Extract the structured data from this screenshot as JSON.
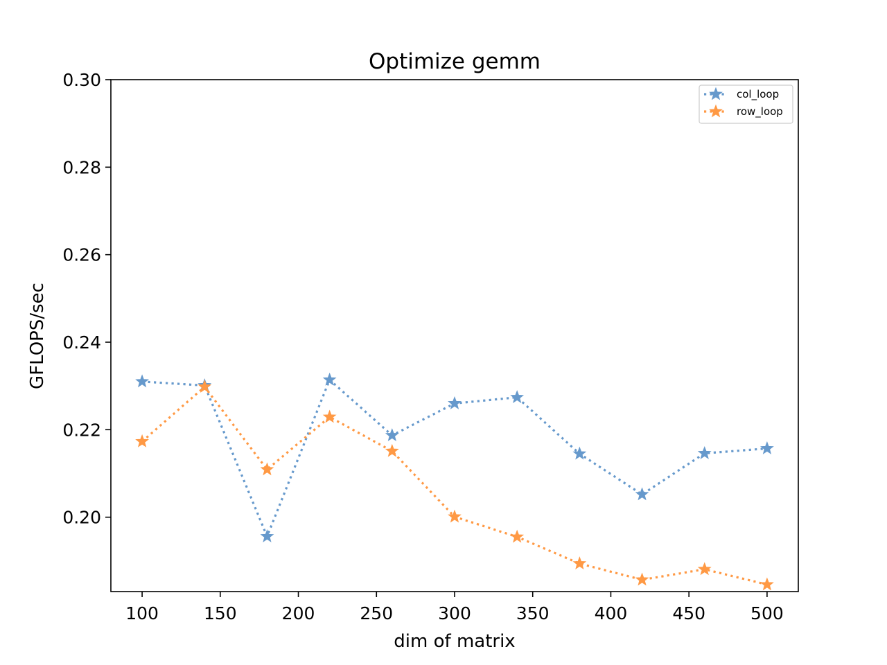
{
  "chart_data": {
    "type": "line",
    "title": "Optimize gemm",
    "xlabel": "dim of matrix",
    "ylabel": "GFLOPS/sec",
    "xlim": [
      80,
      520
    ],
    "ylim": [
      0.183,
      0.3
    ],
    "xticks": [
      100,
      150,
      200,
      250,
      300,
      350,
      400,
      450,
      500
    ],
    "xtick_labels": [
      "100",
      "150",
      "200",
      "250",
      "300",
      "350",
      "400",
      "450",
      "500"
    ],
    "yticks": [
      0.2,
      0.22,
      0.24,
      0.26,
      0.28,
      0.3
    ],
    "ytick_labels": [
      "0.20",
      "0.22",
      "0.24",
      "0.26",
      "0.28",
      "0.30"
    ],
    "grid": false,
    "legend_position": "top-right",
    "x": [
      100,
      140,
      180,
      220,
      260,
      300,
      340,
      380,
      420,
      460,
      500
    ],
    "series": [
      {
        "name": "col_loop",
        "color": "#6699cc",
        "linestyle": "dotted",
        "marker": "star",
        "values": [
          0.231,
          0.2301,
          0.1956,
          0.2314,
          0.2187,
          0.226,
          0.2274,
          0.2145,
          0.2052,
          0.2146,
          0.2157
        ]
      },
      {
        "name": "row_loop",
        "color": "#ff9944",
        "linestyle": "dotted",
        "marker": "star",
        "values": [
          0.2173,
          0.2298,
          0.2109,
          0.2229,
          0.2151,
          0.2001,
          0.1955,
          0.1894,
          0.1857,
          0.1881,
          0.1846
        ]
      }
    ]
  }
}
